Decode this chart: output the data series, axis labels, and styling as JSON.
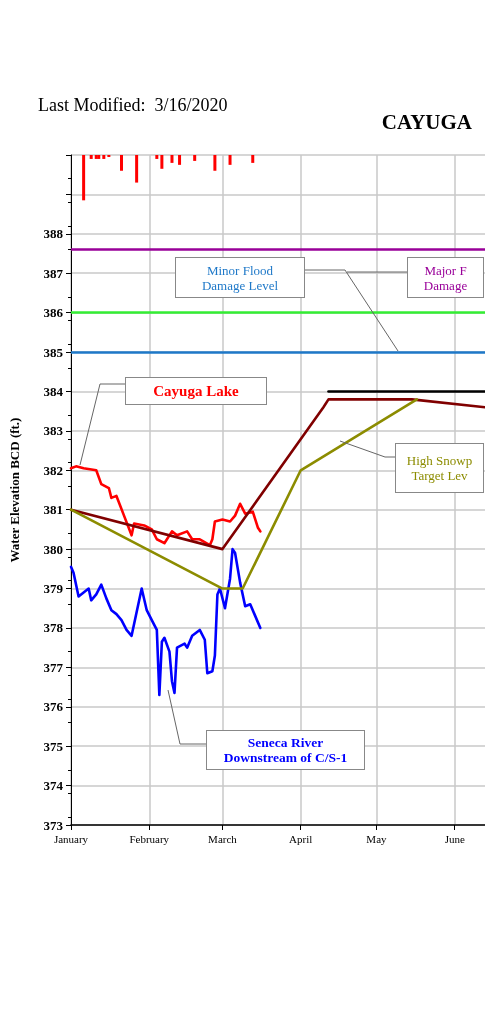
{
  "chart_data": {
    "type": "line",
    "title": "CAYUGA",
    "subtitle": "Last Modified:  3/16/2020",
    "ylabel": "Water Elevation BCD (ft.)",
    "xlim": [
      "--01-01",
      "--06-13"
    ],
    "xticks": [
      {
        "value": "--01-01",
        "label": "January"
      },
      {
        "value": "--02-01",
        "label": "February"
      },
      {
        "value": "--03-01",
        "label": "March"
      },
      {
        "value": "--04-01",
        "label": "April"
      },
      {
        "value": "--05-01",
        "label": "May"
      },
      {
        "value": "--06-01",
        "label": "June"
      }
    ],
    "ylim": [
      373,
      390
    ],
    "yticks": [
      373,
      374,
      375,
      376,
      377,
      378,
      379,
      380,
      381,
      382,
      383,
      384,
      385,
      386,
      387,
      388,
      {
        "value": 389,
        "label": null
      },
      {
        "value": 390,
        "label": null
      }
    ],
    "grid": true,
    "marker": "none",
    "series": [
      {
        "type": "bar",
        "color": "#ff0000",
        "x": [
          "--01-06",
          "--01-09",
          "--01-11",
          "--01-12",
          "--01-14",
          "--01-16",
          "--01-21",
          "--01-27",
          "--02-04",
          "--02-06",
          "--02-10",
          "--02-13",
          "--02-19",
          "--02-27",
          "--03-04",
          "--03-13"
        ],
        "base": [
          390,
          390,
          390,
          390,
          390,
          390,
          390,
          390,
          390,
          390,
          390,
          390,
          390,
          390,
          390,
          390
        ],
        "values": [
          -1.15,
          -0.1,
          -0.1,
          -0.1,
          -0.1,
          -0.05,
          -0.4,
          -0.7,
          -0.1,
          -0.35,
          -0.2,
          -0.25,
          -0.15,
          -0.4,
          -0.25,
          -0.2
        ]
      },
      {
        "name": "Cayuga Lake",
        "color": "#ff0000",
        "x": [
          "--01-01",
          "--01-03",
          "--01-06",
          "--01-11",
          "--01-13",
          "--01-16",
          "--01-17",
          "--01-19",
          "--01-22",
          "--01-25",
          "--01-26",
          "--01-30",
          "--02-02",
          "--02-04",
          "--02-07",
          "--02-10",
          "--02-12",
          "--02-16",
          "--02-18",
          "--02-21",
          "--02-25",
          "--02-26",
          "--02-27",
          "--03-01",
          "--03-04",
          "--03-06",
          "--03-08",
          "--03-10",
          "--03-13",
          "--03-15",
          "--03-16"
        ],
        "values": [
          382.05,
          382.1,
          382.05,
          382.0,
          381.65,
          381.55,
          381.3,
          381.35,
          380.85,
          380.35,
          380.65,
          380.6,
          380.5,
          380.25,
          380.15,
          380.45,
          380.35,
          380.45,
          380.25,
          380.25,
          380.1,
          380.25,
          380.7,
          380.75,
          380.7,
          380.85,
          381.15,
          380.9,
          380.95,
          380.55,
          380.45
        ]
      },
      {
        "name": "Seneca River\nDownstream of C/S-1",
        "color": "#0000ff",
        "x": [
          "--01-01",
          "--01-02",
          "--01-04",
          "--01-06",
          "--01-08",
          "--01-09",
          "--01-11",
          "--01-13",
          "--01-15",
          "--01-17",
          "--01-19",
          "--01-21",
          "--01-23",
          "--01-25",
          "--01-29",
          "--01-31",
          "--02-02",
          "--02-04",
          "--02-05",
          "--02-06",
          "--02-07",
          "--02-09",
          "--02-10",
          "--02-11",
          "--02-12",
          "--02-15",
          "--02-16",
          "--02-18",
          "--02-21",
          "--02-23",
          "--02-24",
          "--02-26",
          "--02-27",
          "--02-28",
          "--02-29",
          "--03-02",
          "--03-04",
          "--03-05",
          "--03-06",
          "--03-08",
          "--03-10",
          "--03-12",
          "--03-14",
          "--03-16"
        ],
        "values": [
          379.55,
          379.4,
          378.8,
          378.9,
          379.0,
          378.7,
          378.85,
          379.1,
          378.75,
          378.45,
          378.35,
          378.2,
          377.95,
          377.8,
          379.0,
          378.45,
          378.2,
          377.95,
          376.3,
          377.65,
          377.75,
          377.4,
          376.65,
          376.35,
          377.5,
          377.6,
          377.5,
          377.8,
          377.95,
          377.7,
          376.85,
          376.9,
          377.3,
          378.85,
          379.0,
          378.5,
          379.25,
          380.0,
          379.9,
          379.15,
          378.55,
          378.6,
          378.3,
          378.0
        ]
      },
      {
        "color": "#800000",
        "x": [
          "--01-01",
          "--03-01",
          "--04-10",
          "--04-12",
          "--05-15",
          "--06-13"
        ],
        "values": [
          381.0,
          380.0,
          383.6,
          383.8,
          383.8,
          383.6
        ]
      },
      {
        "name": "High Snowp\nTarget Lev",
        "color": "#8c8c00",
        "x": [
          "--01-01",
          "--03-01",
          "--03-09",
          "--04-01",
          "--05-17"
        ],
        "values": [
          381.0,
          379.0,
          379.0,
          382.0,
          383.8
        ]
      },
      {
        "color": "#000000",
        "x": [
          "--04-12",
          "--06-13"
        ],
        "values": [
          384.0,
          384.0
        ]
      }
    ],
    "ref_lines": [
      {
        "axis": "y",
        "value": 385,
        "label": "Minor Flood\nDamage Level",
        "color": "#1e78c8"
      },
      {
        "axis": "y",
        "value": 387.6,
        "label": "Major F\nDamage",
        "color": "#990099"
      },
      {
        "axis": "y",
        "value": 386,
        "color": "#33ee33"
      }
    ]
  }
}
